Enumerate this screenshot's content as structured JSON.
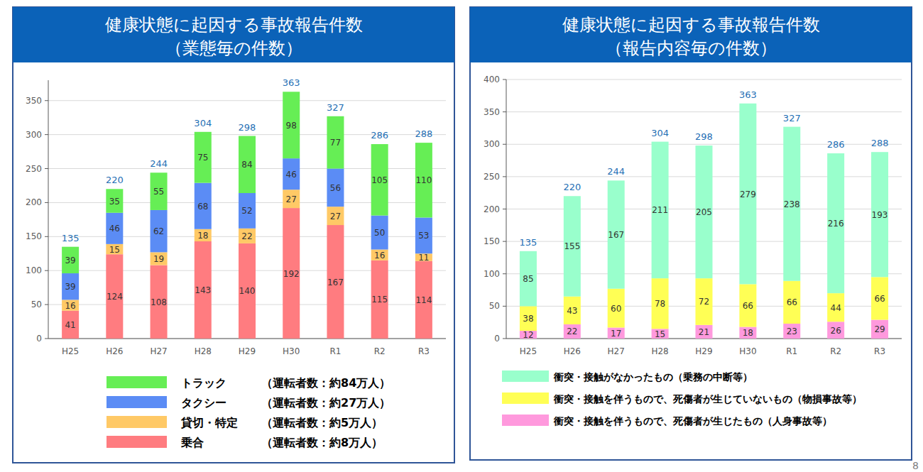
{
  "chart_data": [
    {
      "type": "bar",
      "stacked": true,
      "data_labels": true,
      "grid": true,
      "legend": "bottom",
      "title": "健康状態に起因する事故報告件数",
      "subtitle": "（業態毎の件数）",
      "categories": [
        "H25",
        "H26",
        "H27",
        "H28",
        "H29",
        "H30",
        "R1",
        "R2",
        "R3"
      ],
      "series": [
        {
          "name": "乗合",
          "note": "（運転者数：約8万人）",
          "color": "#ff7c80",
          "values": [
            41,
            124,
            108,
            143,
            140,
            192,
            167,
            115,
            114
          ]
        },
        {
          "name": "貸切・特定",
          "note": "（運転者数：約5万人）",
          "color": "#ffc966",
          "values": [
            16,
            15,
            19,
            18,
            22,
            27,
            27,
            16,
            11
          ]
        },
        {
          "name": "タクシー",
          "note": "（運転者数：約27万人）",
          "color": "#5b8cf5",
          "values": [
            39,
            46,
            62,
            68,
            52,
            46,
            56,
            50,
            53
          ]
        },
        {
          "name": "トラック",
          "note": "（運転者数：約84万人）",
          "color": "#66ee55",
          "values": [
            39,
            35,
            55,
            75,
            84,
            98,
            77,
            105,
            110
          ]
        }
      ],
      "totals": [
        135,
        220,
        244,
        304,
        298,
        363,
        327,
        286,
        288
      ],
      "ylim": [
        0,
        380
      ],
      "yticks": [
        0,
        50,
        100,
        150,
        200,
        250,
        300,
        350
      ]
    },
    {
      "type": "bar",
      "stacked": true,
      "data_labels": true,
      "grid": true,
      "legend": "bottom",
      "title": "健康状態に起因する事故報告件数",
      "subtitle": "（報告内容毎の件数）",
      "categories": [
        "H25",
        "H26",
        "H27",
        "H28",
        "H29",
        "H30",
        "R1",
        "R2",
        "R3"
      ],
      "series": [
        {
          "name": "衝突・接触を伴うもので、死傷者が生じたもの（人身事故等）",
          "color": "#ff99dd",
          "values": [
            12,
            22,
            17,
            15,
            21,
            18,
            23,
            26,
            29
          ]
        },
        {
          "name": "衝突・接触を伴うもので、死傷者が生じていないもの（物損事故等）",
          "color": "#ffff55",
          "values": [
            38,
            43,
            60,
            78,
            72,
            66,
            66,
            44,
            66
          ]
        },
        {
          "name": "衝突・接触がなかったもの（乗務の中断等）",
          "color": "#99ffcc",
          "values": [
            85,
            155,
            167,
            211,
            205,
            279,
            238,
            216,
            193
          ]
        }
      ],
      "totals": [
        135,
        220,
        244,
        304,
        298,
        363,
        327,
        286,
        288
      ],
      "ylim": [
        0,
        400
      ],
      "yticks": [
        0,
        50,
        100,
        150,
        200,
        250,
        300,
        350,
        400
      ]
    }
  ],
  "page_number": "8"
}
